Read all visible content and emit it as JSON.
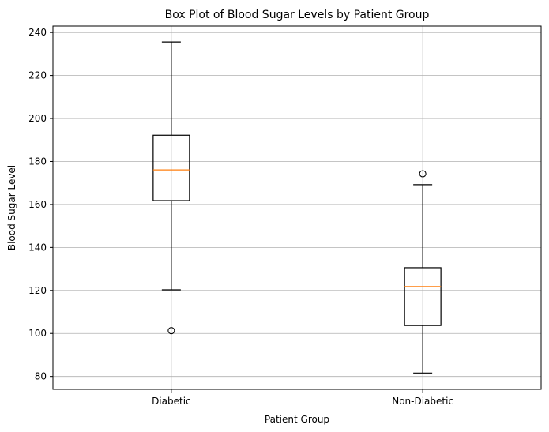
{
  "chart_data": {
    "type": "box",
    "title": "Box Plot of Blood Sugar Levels by Patient Group",
    "xlabel": "Patient Group",
    "ylabel": "Blood Sugar Level",
    "ylim": [
      74,
      243
    ],
    "yticks": [
      80,
      100,
      120,
      140,
      160,
      180,
      200,
      220,
      240
    ],
    "grid": true,
    "categories": [
      "Diabetic",
      "Non-Diabetic"
    ],
    "boxes": [
      {
        "category": "Diabetic",
        "whisker_low": 120.3,
        "q1": 161.8,
        "median": 176.1,
        "q3": 192.2,
        "whisker_high": 235.6,
        "outliers": [
          101.3
        ]
      },
      {
        "category": "Non-Diabetic",
        "whisker_low": 81.6,
        "q1": 103.7,
        "median": 121.8,
        "q3": 130.6,
        "whisker_high": 169.2,
        "outliers": [
          174.3
        ]
      }
    ],
    "colors": {
      "box": "#000000",
      "median": "#ff7f0e",
      "grid": "#b0b0b0"
    }
  }
}
